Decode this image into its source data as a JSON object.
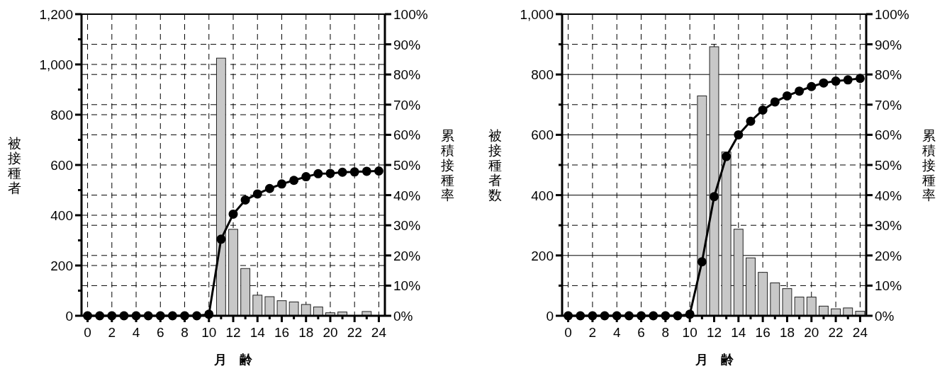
{
  "chart_data": [
    {
      "type": "bar",
      "xlabel": "月　齢",
      "ylabel": "被接種者",
      "y2label": "累積接種率",
      "grid": true,
      "marker": "circle",
      "x": [
        0,
        1,
        2,
        3,
        4,
        5,
        6,
        7,
        8,
        9,
        10,
        11,
        12,
        13,
        14,
        15,
        16,
        17,
        18,
        19,
        20,
        21,
        22,
        23,
        24
      ],
      "xlim": [
        -0.5,
        24.5
      ],
      "xticks": [
        0,
        {
          "value": 1,
          "label": null
        },
        2,
        {
          "value": 3,
          "label": null
        },
        4,
        {
          "value": 5,
          "label": null
        },
        6,
        {
          "value": 7,
          "label": null
        },
        8,
        {
          "value": 9,
          "label": null
        },
        10,
        {
          "value": 11,
          "label": null
        },
        12,
        {
          "value": 13,
          "label": null
        },
        14,
        {
          "value": 15,
          "label": null
        },
        16,
        {
          "value": 17,
          "label": null
        },
        18,
        {
          "value": 19,
          "label": null
        },
        20,
        {
          "value": 21,
          "label": null
        },
        22,
        {
          "value": 23,
          "label": null
        },
        24
      ],
      "ylim": [
        0,
        1200
      ],
      "yticks": [
        0,
        {
          "value": 100,
          "label": null
        },
        200,
        {
          "value": 300,
          "label": null
        },
        400,
        {
          "value": 500,
          "label": null
        },
        600,
        {
          "value": 700,
          "label": null
        },
        800,
        {
          "value": 900,
          "label": null
        },
        {
          "value": 1000,
          "label": "1,000"
        },
        {
          "value": 1100,
          "label": null
        },
        {
          "value": 1200,
          "label": "1,200"
        }
      ],
      "y2lim": [
        0,
        100
      ],
      "y2ticks": [
        {
          "value": 0,
          "label": "0%"
        },
        {
          "value": 10,
          "label": "10%"
        },
        {
          "value": 20,
          "label": "20%"
        },
        {
          "value": 30,
          "label": "30%"
        },
        {
          "value": 40,
          "label": "40%"
        },
        {
          "value": 50,
          "label": "50%"
        },
        {
          "value": 60,
          "label": "60%"
        },
        {
          "value": 70,
          "label": "70%"
        },
        {
          "value": 80,
          "label": "80%"
        },
        {
          "value": 90,
          "label": "90%"
        },
        {
          "value": 100,
          "label": "100%"
        }
      ],
      "series": [
        {
          "color": "#c8c8c8",
          "values": [
            null,
            null,
            null,
            null,
            null,
            null,
            null,
            null,
            null,
            null,
            null,
            1025,
            344,
            188,
            82,
            76,
            60,
            55,
            45,
            35,
            12,
            15,
            null,
            17,
            null
          ]
        },
        {
          "type": "line",
          "axis": "y2",
          "color": "#000000",
          "values": [
            0,
            0,
            0,
            0,
            0,
            0,
            0,
            0,
            0,
            0,
            0.5,
            25.4,
            33.7,
            38.4,
            40.4,
            42.2,
            43.7,
            44.9,
            46.1,
            47.1,
            47.2,
            47.6,
            47.7,
            47.9,
            48.0
          ]
        }
      ]
    },
    {
      "type": "bar",
      "xlabel": "月　齢",
      "ylabel": "被接種者数",
      "y2label": "累積接種率",
      "grid": true,
      "marker": "circle",
      "x": [
        0,
        1,
        2,
        3,
        4,
        5,
        6,
        7,
        8,
        9,
        10,
        11,
        12,
        13,
        14,
        15,
        16,
        17,
        18,
        19,
        20,
        21,
        22,
        23,
        24
      ],
      "xlim": [
        -0.5,
        24.5
      ],
      "xticks": [
        0,
        {
          "value": 1,
          "label": null
        },
        2,
        {
          "value": 3,
          "label": null
        },
        4,
        {
          "value": 5,
          "label": null
        },
        6,
        {
          "value": 7,
          "label": null
        },
        8,
        {
          "value": 9,
          "label": null
        },
        10,
        {
          "value": 11,
          "label": null
        },
        12,
        {
          "value": 13,
          "label": null
        },
        14,
        {
          "value": 15,
          "label": null
        },
        16,
        {
          "value": 17,
          "label": null
        },
        18,
        {
          "value": 19,
          "label": null
        },
        20,
        {
          "value": 21,
          "label": null
        },
        22,
        {
          "value": 23,
          "label": null
        },
        24
      ],
      "ylim": [
        0,
        1000
      ],
      "yticks": [
        0,
        {
          "value": 100,
          "label": null
        },
        200,
        {
          "value": 300,
          "label": null
        },
        400,
        {
          "value": 500,
          "label": null
        },
        600,
        {
          "value": 700,
          "label": null
        },
        800,
        {
          "value": 900,
          "label": null
        },
        {
          "value": 1000,
          "label": "1,000"
        }
      ],
      "y2lim": [
        0,
        100
      ],
      "y2ticks": [
        {
          "value": 0,
          "label": "0%"
        },
        {
          "value": 10,
          "label": "10%"
        },
        {
          "value": 20,
          "label": "20%"
        },
        {
          "value": 30,
          "label": "30%"
        },
        {
          "value": 40,
          "label": "40%"
        },
        {
          "value": 50,
          "label": "50%"
        },
        {
          "value": 60,
          "label": "60%"
        },
        {
          "value": 70,
          "label": "70%"
        },
        {
          "value": 80,
          "label": "80%"
        },
        {
          "value": 90,
          "label": "90%"
        },
        {
          "value": 100,
          "label": "100%"
        }
      ],
      "series": [
        {
          "color": "#c8c8c8",
          "values": [
            null,
            null,
            null,
            null,
            null,
            null,
            null,
            null,
            null,
            null,
            null,
            729,
            892,
            543,
            287,
            192,
            144,
            109,
            90,
            62,
            62,
            32,
            23,
            26,
            15
          ]
        },
        {
          "type": "line",
          "axis": "y2",
          "color": "#000000",
          "values": [
            0,
            0,
            0,
            0,
            0,
            0,
            0,
            0,
            0,
            0,
            0.5,
            17.9,
            39.5,
            52.8,
            60.0,
            64.5,
            68.2,
            70.9,
            72.9,
            74.5,
            76.0,
            77.2,
            77.8,
            78.2,
            78.7
          ]
        }
      ]
    }
  ]
}
